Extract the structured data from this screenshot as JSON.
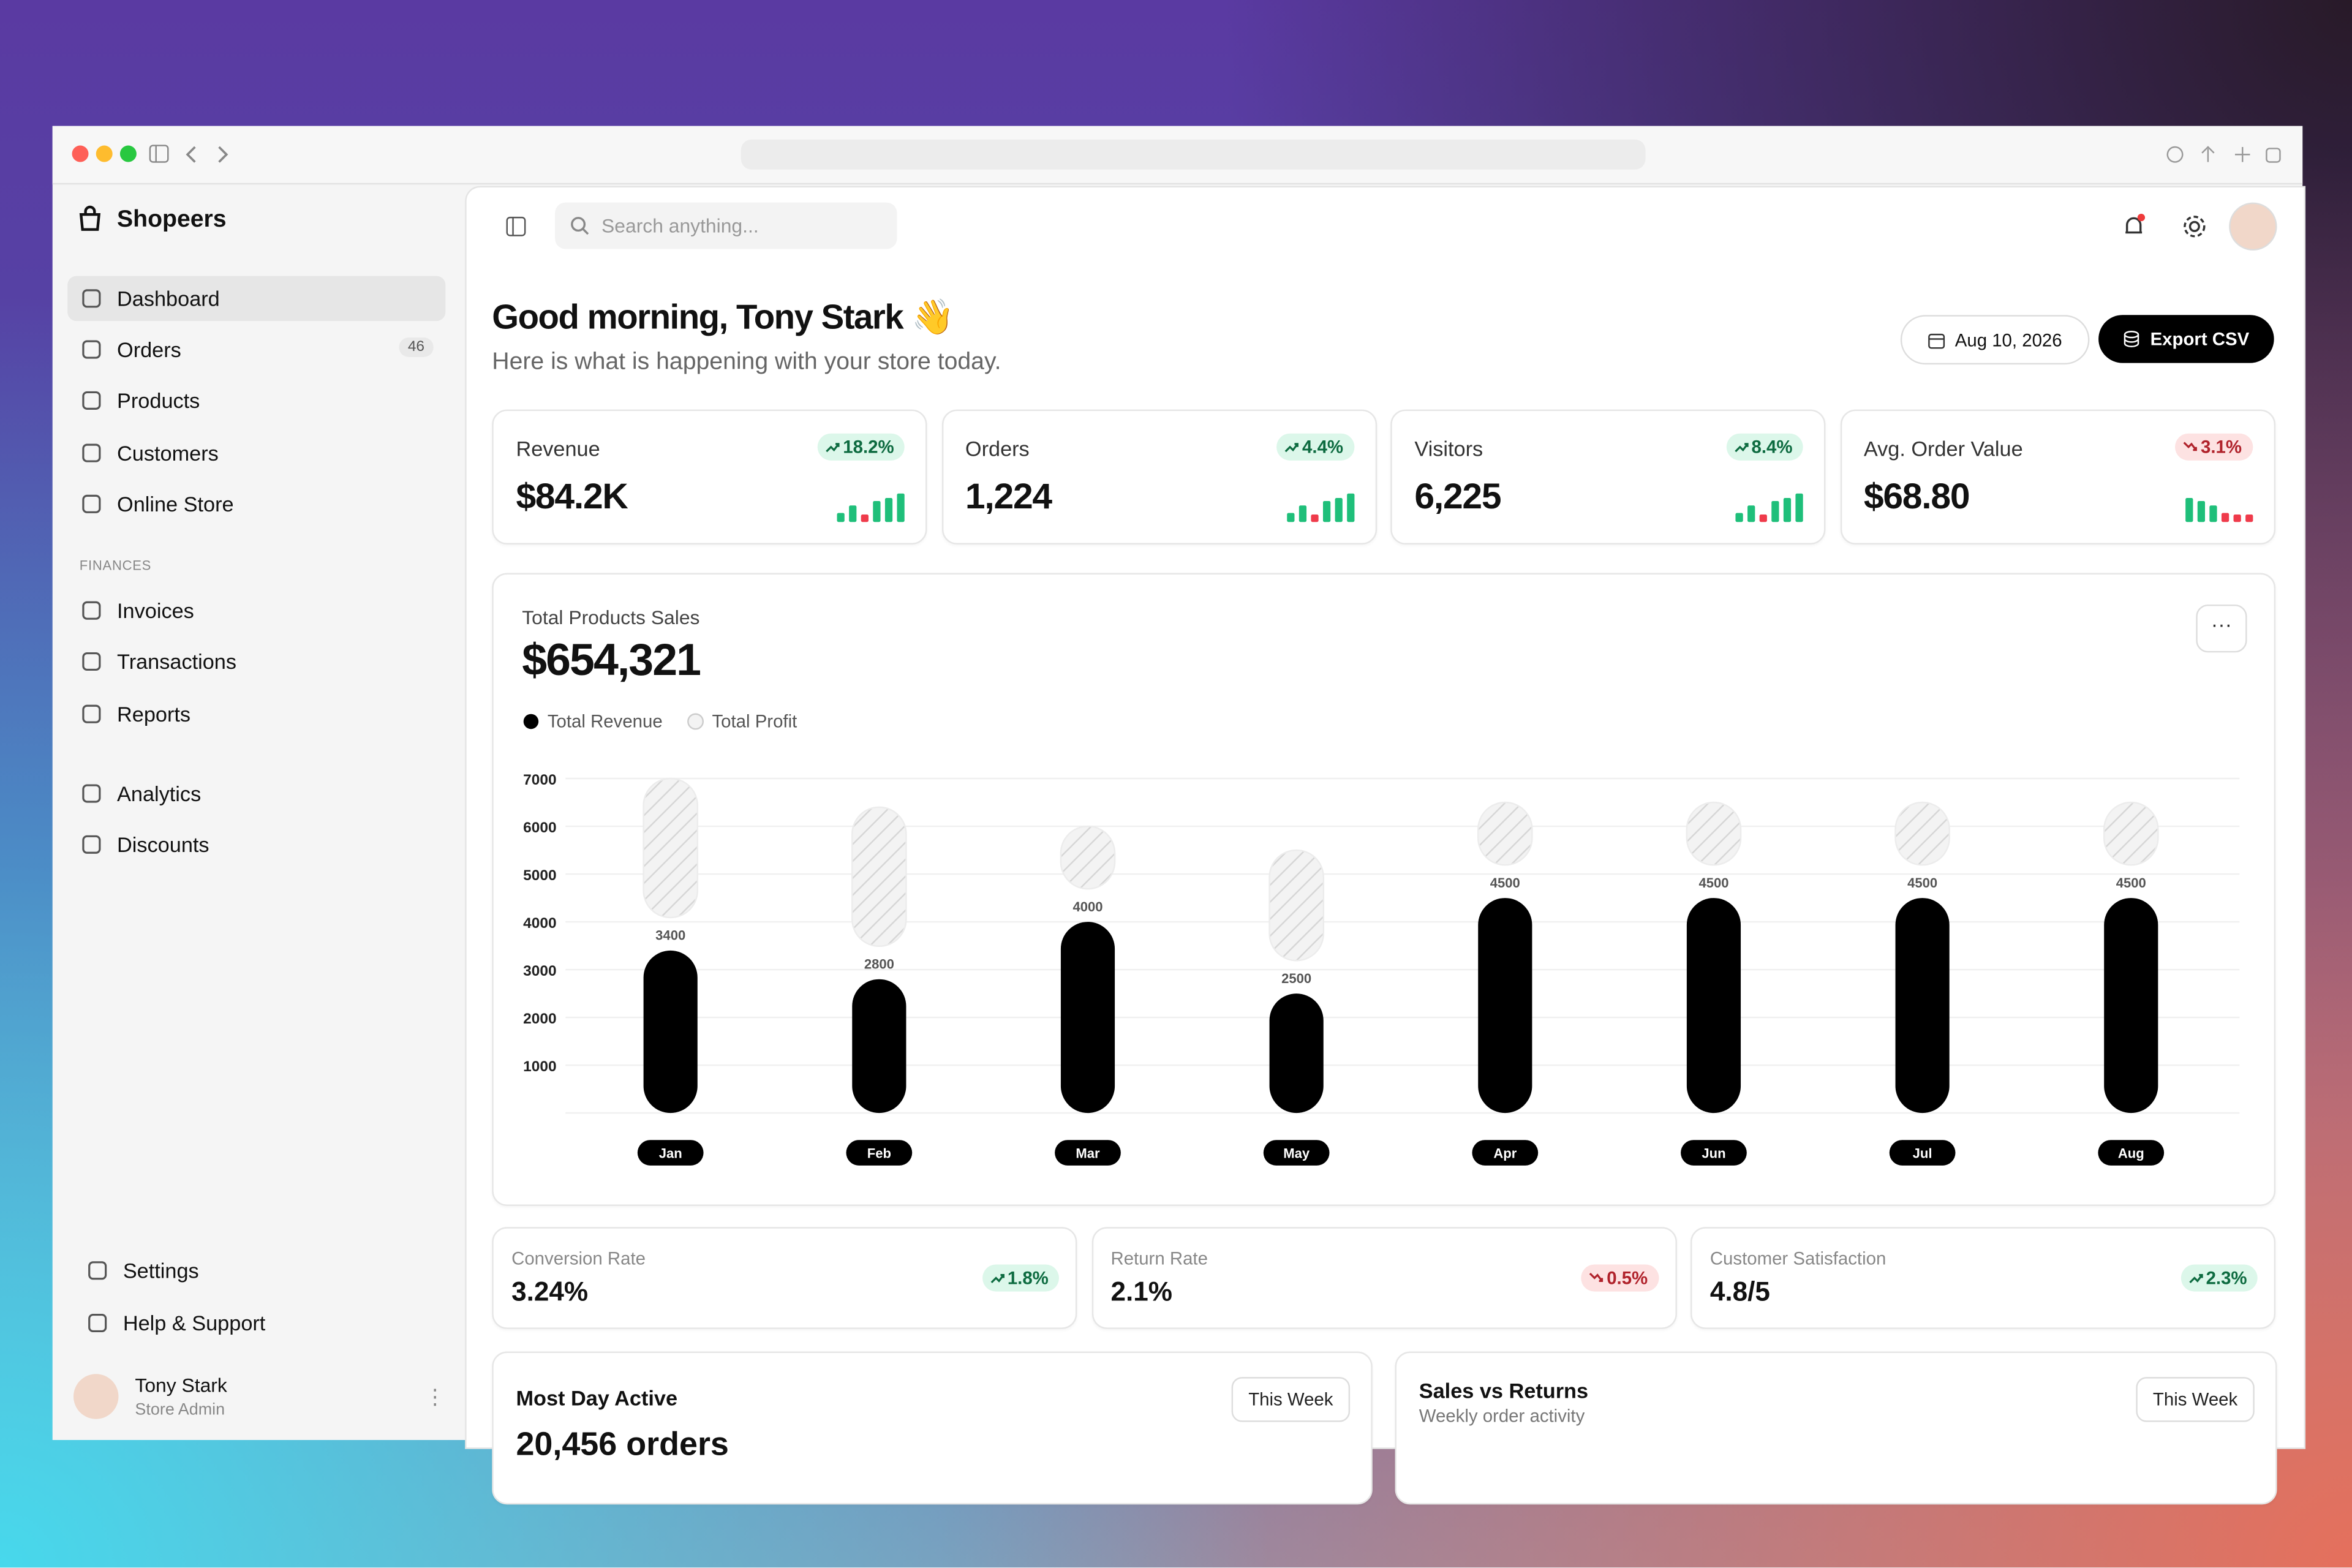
{
  "sidebar": {
    "brand": "Shopeers",
    "nav": [
      {
        "label": "Dashboard"
      },
      {
        "label": "Orders",
        "badge": 46
      },
      {
        "label": "Products"
      },
      {
        "label": "Customers"
      },
      {
        "label": "Online Store"
      }
    ],
    "section": "FINANCES",
    "finance": [
      {
        "label": "Invoices"
      },
      {
        "label": "Transactions"
      },
      {
        "label": "Reports"
      }
    ],
    "more": [
      {
        "label": "Analytics"
      },
      {
        "label": "Discounts"
      }
    ],
    "footer": [
      {
        "label": "Settings"
      },
      {
        "label": "Help & Support"
      }
    ],
    "user": {
      "name": "Tony Stark",
      "role": "Store Admin"
    }
  },
  "header": {
    "search": "Search anything..."
  },
  "greeting": {
    "title": "Good morning, Tony Stark 👋",
    "subtitle": "Here is what is happening with your store today.",
    "date": "Aug 10, 2026",
    "export": "Export CSV"
  },
  "stats": [
    {
      "label": "Revenue",
      "value": "$84.2K",
      "change": "18.2%",
      "trend": "up"
    },
    {
      "label": "Orders",
      "value": "1,224",
      "change": "4.4%",
      "trend": "up"
    },
    {
      "label": "Visitors",
      "value": "6,225",
      "change": "8.4%",
      "trend": "up"
    },
    {
      "label": "Avg. Order Value",
      "value": "$68.80",
      "change": "3.1%",
      "trend": "down"
    }
  ],
  "chart_data": {
    "type": "bar",
    "stacked": true,
    "title": "Total Products Sales",
    "total": "$654,321",
    "categories": [
      "Jan",
      "Feb",
      "Mar",
      "May",
      "Apr",
      "Jun",
      "Jul",
      "Aug"
    ],
    "series": [
      {
        "name": "Total Revenue",
        "color": "#000000",
        "values": [
          3400,
          2800,
          4000,
          2500,
          4500,
          4500,
          4500,
          4500
        ]
      },
      {
        "name": "Total Profit",
        "color": "#f3f3f3",
        "values": [
          3600,
          3600,
          2000,
          3000,
          2000,
          2000,
          2000,
          2000
        ]
      }
    ],
    "ylim": [
      0,
      7000
    ],
    "yticks": [
      1000,
      2000,
      3000,
      4000,
      5000,
      6000,
      7000
    ],
    "grid": true
  },
  "metrics": [
    {
      "label": "Conversion Rate",
      "value": "3.24%",
      "change": "1.8%",
      "trend": "up"
    },
    {
      "label": "Return Rate",
      "value": "2.1%",
      "change": "0.5%",
      "trend": "down"
    },
    {
      "label": "Customer Satisfaction",
      "value": "4.8/5",
      "change": "2.3%",
      "trend": "up"
    }
  ],
  "panels": [
    {
      "title": "Most Day Active",
      "subtitle": "20,456 orders",
      "button": "This Week"
    },
    {
      "title": "Sales vs Returns",
      "subtitle": "Weekly order activity",
      "button": "This Week"
    }
  ]
}
